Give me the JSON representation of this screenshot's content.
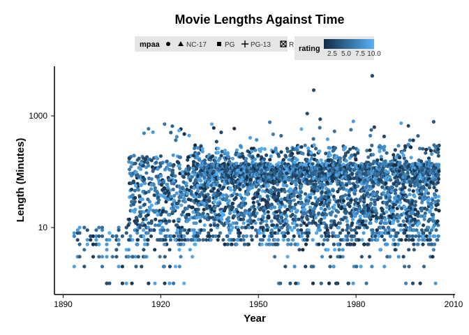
{
  "chart_data": {
    "type": "scatter",
    "title": "Movie Lengths Against Time",
    "xlabel": "Year",
    "ylabel": "Length (Minutes)",
    "xlim": [
      1890,
      2010
    ],
    "ylim": [
      1,
      6000
    ],
    "y_scale": "log10",
    "x_ticks": [
      1890,
      1920,
      1950,
      1980,
      2010
    ],
    "x_tick_labels": [
      "1890",
      "1920",
      "1950",
      "1980",
      "2010"
    ],
    "y_ticks": [
      10,
      1000
    ],
    "y_tick_labels": [
      "10",
      "1000"
    ],
    "grid": false,
    "legend_position": "top",
    "shape_legend": {
      "title": "mpaa",
      "entries": [
        {
          "shape": "circle",
          "label": ""
        },
        {
          "shape": "triangle",
          "label": "NC-17"
        },
        {
          "shape": "square",
          "label": "PG"
        },
        {
          "shape": "plus",
          "label": "PG-13"
        },
        {
          "shape": "boxed-x",
          "label": "R"
        }
      ]
    },
    "color_legend": {
      "title": "rating",
      "range": [
        1,
        10
      ],
      "low_color": "#132B43",
      "high_color": "#56B1F7",
      "tick_values": [
        2.5,
        5.0,
        7.5,
        10.0
      ],
      "tick_labels": [
        "2.5",
        "5.0",
        "7.5",
        "10.0"
      ]
    },
    "notable_points": [
      {
        "x": 1985,
        "y": 5220
      },
      {
        "x": 1967,
        "y": 2880
      },
      {
        "x": 1965,
        "y": 1100
      },
      {
        "x": 1969,
        "y": 873
      }
    ],
    "density_bands": [
      {
        "x_start": 1893,
        "x_end": 1910,
        "y_min": 1,
        "y_max": 15,
        "density": "sparse"
      },
      {
        "x_start": 1910,
        "x_end": 1930,
        "y_min": 1,
        "y_max": 260,
        "density": "moderate"
      },
      {
        "x_start": 1930,
        "x_end": 2005,
        "y_min": 4,
        "y_max": 300,
        "density": "dense"
      },
      {
        "x_start": 1958,
        "x_end": 2005,
        "y_min": 1,
        "y_max": 6,
        "density": "sparse"
      }
    ]
  }
}
